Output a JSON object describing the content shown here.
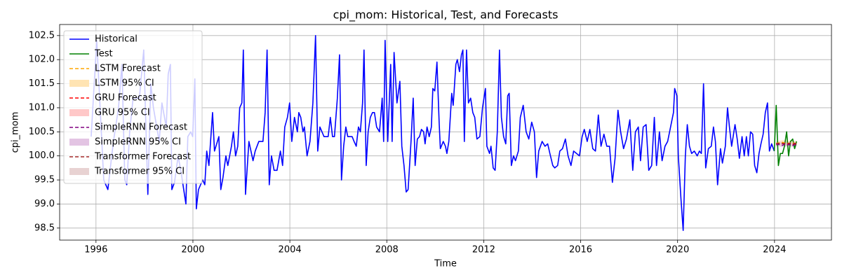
{
  "chart_data": {
    "type": "line",
    "title": "cpi_mom: Historical, Test, and Forecasts",
    "x_label": "Time",
    "y_label": "cpi_mom",
    "xlim": [
      1994.5,
      2026.35
    ],
    "ylim": [
      98.25,
      102.73
    ],
    "xticks": [
      1996,
      2000,
      2004,
      2008,
      2012,
      2016,
      2020,
      2024
    ],
    "yticks": [
      98.5,
      {
        "value": 99,
        "label": "99.0"
      },
      99.5,
      {
        "value": 100,
        "label": "100.0"
      },
      100.5,
      {
        "value": 101,
        "label": "101.0"
      },
      101.5,
      {
        "value": 102,
        "label": "102.0"
      },
      102.5
    ],
    "grid": true,
    "legend": "upper left",
    "series": [
      {
        "name": "Historical",
        "color": "#0000ff",
        "x": [
          1995.8,
          1996.03,
          1996.32,
          1996.49,
          1996.58,
          1996.72,
          1996.93,
          1997.07,
          1997.19,
          1997.27,
          1997.39,
          1997.53,
          1997.79,
          1997.97,
          1998.14,
          1998.26,
          1998.37,
          1998.61,
          1998.72,
          1998.9,
          1998.98,
          1999.07,
          1999.13,
          1999.24,
          1999.39,
          1999.53,
          1999.71,
          1999.79,
          1999.91,
          1999.99,
          2000.08,
          2000.14,
          2000.23,
          2000.4,
          2000.49,
          2000.57,
          2000.66,
          2000.81,
          2000.89,
          2001.07,
          2001.15,
          2001.24,
          2001.36,
          2001.44,
          2001.59,
          2001.67,
          2001.76,
          2001.85,
          2001.93,
          2002.02,
          2002.08,
          2002.17,
          2002.31,
          2002.48,
          2002.57,
          2002.72,
          2002.89,
          2002.98,
          2003.06,
          2003.15,
          2003.24,
          2003.35,
          2003.47,
          2003.61,
          2003.7,
          2003.79,
          2003.9,
          2003.99,
          2004.08,
          2004.19,
          2004.31,
          2004.37,
          2004.45,
          2004.54,
          2004.6,
          2004.71,
          2004.83,
          2004.95,
          2005.06,
          2005.15,
          2005.24,
          2005.41,
          2005.58,
          2005.67,
          2005.76,
          2005.84,
          2005.96,
          2006.05,
          2006.13,
          2006.22,
          2006.31,
          2006.39,
          2006.57,
          2006.65,
          2006.74,
          2006.83,
          2006.91,
          2007.0,
          2007.06,
          2007.15,
          2007.23,
          2007.32,
          2007.41,
          2007.49,
          2007.58,
          2007.7,
          2007.81,
          2007.87,
          2007.93,
          2008.04,
          2008.16,
          2008.22,
          2008.3,
          2008.42,
          2008.54,
          2008.62,
          2008.71,
          2008.8,
          2008.88,
          2009.0,
          2009.09,
          2009.17,
          2009.26,
          2009.35,
          2009.43,
          2009.52,
          2009.58,
          2009.66,
          2009.75,
          2009.84,
          2009.9,
          2009.98,
          2010.07,
          2010.16,
          2010.21,
          2010.33,
          2010.42,
          2010.48,
          2010.56,
          2010.68,
          2010.74,
          2010.85,
          2010.91,
          2011.0,
          2011.08,
          2011.14,
          2011.2,
          2011.29,
          2011.37,
          2011.46,
          2011.55,
          2011.63,
          2011.72,
          2011.84,
          2011.95,
          2012.07,
          2012.13,
          2012.24,
          2012.3,
          2012.39,
          2012.47,
          2012.56,
          2012.65,
          2012.73,
          2012.82,
          2012.91,
          2012.99,
          2013.05,
          2013.14,
          2013.23,
          2013.31,
          2013.43,
          2013.51,
          2013.63,
          2013.75,
          2013.86,
          2013.98,
          2014.09,
          2014.18,
          2014.27,
          2014.41,
          2014.53,
          2014.64,
          2014.73,
          2014.85,
          2014.93,
          2015.05,
          2015.14,
          2015.25,
          2015.37,
          2015.48,
          2015.6,
          2015.71,
          2015.83,
          2015.95,
          2016.06,
          2016.15,
          2016.27,
          2016.38,
          2016.5,
          2016.61,
          2016.73,
          2016.84,
          2016.96,
          2017.08,
          2017.19,
          2017.31,
          2017.42,
          2017.54,
          2017.65,
          2017.77,
          2017.89,
          2018.03,
          2018.15,
          2018.26,
          2018.38,
          2018.47,
          2018.58,
          2018.7,
          2018.81,
          2018.93,
          2019.04,
          2019.13,
          2019.25,
          2019.36,
          2019.48,
          2019.59,
          2019.71,
          2019.83,
          2019.88,
          2019.97,
          2020.03,
          2020.14,
          2020.23,
          2020.32,
          2020.4,
          2020.49,
          2020.58,
          2020.69,
          2020.81,
          2020.9,
          2020.98,
          2021.07,
          2021.16,
          2021.27,
          2021.39,
          2021.48,
          2021.56,
          2021.65,
          2021.77,
          2021.85,
          2021.97,
          2022.06,
          2022.14,
          2022.23,
          2022.37,
          2022.46,
          2022.55,
          2022.66,
          2022.75,
          2022.84,
          2022.92,
          2023.01,
          2023.1,
          2023.18,
          2023.27,
          2023.36,
          2023.44,
          2023.53,
          2023.62,
          2023.71,
          2023.79,
          2023.88,
          2023.99
        ],
        "values": [
          100.4,
          102.4,
          99.5,
          99.3,
          99.7,
          100.3,
          101.0,
          101.9,
          99.5,
          99.4,
          100.5,
          101.2,
          101.2,
          102.2,
          99.2,
          101.5,
          101.0,
          100.3,
          101.1,
          100.6,
          101.7,
          101.9,
          99.3,
          99.45,
          100.0,
          99.6,
          99.0,
          100.4,
          100.5,
          100.4,
          101.6,
          98.9,
          99.3,
          99.5,
          99.4,
          100.1,
          99.8,
          100.9,
          100.1,
          100.4,
          99.3,
          99.55,
          100.0,
          99.8,
          100.2,
          100.5,
          100.0,
          100.2,
          101.0,
          101.1,
          102.2,
          99.2,
          100.3,
          99.9,
          100.1,
          100.3,
          100.3,
          100.9,
          102.2,
          99.4,
          100.0,
          99.7,
          99.7,
          100.1,
          99.8,
          100.6,
          100.8,
          101.1,
          100.3,
          100.8,
          100.5,
          100.9,
          100.8,
          100.5,
          100.6,
          100.0,
          100.3,
          101.1,
          102.5,
          100.1,
          100.6,
          100.4,
          100.4,
          100.8,
          100.4,
          100.4,
          101.2,
          102.1,
          99.5,
          100.2,
          100.6,
          100.4,
          100.4,
          100.3,
          100.2,
          100.6,
          100.5,
          101.1,
          102.2,
          99.8,
          100.5,
          100.8,
          100.9,
          100.9,
          100.6,
          100.5,
          101.2,
          100.3,
          102.4,
          100.3,
          101.9,
          100.3,
          102.15,
          101.1,
          101.55,
          100.2,
          99.8,
          99.25,
          99.3,
          100.3,
          101.2,
          99.8,
          100.35,
          100.4,
          100.55,
          100.5,
          100.25,
          100.6,
          100.4,
          100.6,
          101.4,
          101.35,
          101.95,
          100.7,
          100.15,
          100.3,
          100.2,
          100.05,
          100.3,
          101.3,
          101.05,
          101.9,
          102.0,
          101.75,
          102.1,
          102.2,
          100.3,
          102.2,
          101.1,
          101.2,
          100.9,
          100.8,
          100.35,
          100.4,
          101.0,
          101.4,
          100.2,
          100.05,
          100.2,
          99.75,
          99.7,
          100.5,
          102.2,
          100.8,
          100.4,
          100.25,
          101.25,
          101.3,
          99.8,
          100.0,
          99.9,
          100.1,
          100.8,
          101.05,
          100.5,
          100.35,
          100.7,
          100.5,
          99.55,
          100.1,
          100.3,
          100.2,
          100.25,
          100.05,
          99.8,
          99.75,
          99.8,
          100.1,
          100.15,
          100.35,
          100.0,
          99.8,
          100.1,
          100.05,
          100.0,
          100.4,
          100.55,
          100.3,
          100.55,
          100.15,
          100.1,
          100.85,
          100.2,
          100.45,
          100.2,
          100.2,
          99.45,
          99.95,
          100.95,
          100.5,
          100.15,
          100.35,
          100.75,
          99.7,
          100.5,
          100.6,
          99.9,
          100.6,
          100.65,
          99.7,
          99.8,
          100.8,
          99.8,
          100.5,
          99.9,
          100.2,
          100.3,
          100.6,
          100.9,
          101.4,
          101.25,
          100.0,
          99.1,
          98.45,
          100.0,
          100.65,
          100.2,
          100.05,
          100.1,
          100.0,
          100.1,
          100.05,
          101.5,
          99.75,
          100.15,
          100.2,
          100.6,
          100.3,
          99.4,
          100.15,
          99.85,
          100.2,
          101.0,
          100.6,
          100.2,
          100.65,
          100.35,
          99.95,
          100.4,
          100.0,
          100.4,
          100.0,
          100.5,
          100.45,
          99.8,
          99.65,
          100.05,
          100.25,
          100.45,
          100.9,
          101.1,
          100.1,
          100.25,
          100.1
        ]
      },
      {
        "name": "Test",
        "color": "#008000",
        "x": [
          2023.99,
          2024.07,
          2024.16,
          2024.24,
          2024.33,
          2024.41,
          2024.5,
          2024.58,
          2024.66,
          2024.75,
          2024.83,
          2024.91
        ],
        "values": [
          100.1,
          101.05,
          99.8,
          100.05,
          100.05,
          100.2,
          100.5,
          100.0,
          100.3,
          100.35,
          100.15,
          100.3
        ]
      },
      {
        "name": "LSTM Forecast",
        "color": "#ffa500",
        "dashed": true,
        "x": [
          2024.07,
          2024.16,
          2024.24,
          2024.33,
          2024.41,
          2024.5,
          2024.58,
          2024.66,
          2024.75,
          2024.83,
          2024.91
        ],
        "values": [
          100.26,
          100.27,
          100.27,
          100.28,
          100.27,
          100.27,
          100.26,
          100.27,
          100.27,
          100.26,
          100.27
        ]
      },
      {
        "name": "GRU Forecast",
        "color": "#ff0000",
        "dashed": true,
        "x": [
          2024.07,
          2024.16,
          2024.24,
          2024.33,
          2024.41,
          2024.5,
          2024.58,
          2024.66,
          2024.75,
          2024.83,
          2024.91
        ],
        "values": [
          100.25,
          100.26,
          100.25,
          100.26,
          100.25,
          100.24,
          100.25,
          100.25,
          100.24,
          100.25,
          100.25
        ]
      },
      {
        "name": "SimpleRNN Forecast",
        "color": "#800080",
        "dashed": true,
        "x": [
          2024.07,
          2024.16,
          2024.24,
          2024.33,
          2024.41,
          2024.5,
          2024.58,
          2024.66,
          2024.75,
          2024.83,
          2024.91
        ],
        "values": [
          100.23,
          100.24,
          100.23,
          100.22,
          100.24,
          100.23,
          100.23,
          100.24,
          100.22,
          100.23,
          100.23
        ]
      },
      {
        "name": "Transformer Forecast",
        "color": "#a52a2a",
        "dashed": true,
        "x": [
          2024.07,
          2024.16,
          2024.24,
          2024.33,
          2024.41,
          2024.5,
          2024.58,
          2024.66,
          2024.75,
          2024.83,
          2024.91
        ],
        "values": [
          100.26,
          100.26,
          100.25,
          100.26,
          100.26,
          100.25,
          100.26,
          100.26,
          100.25,
          100.26,
          100.26
        ]
      }
    ],
    "bands": [
      {
        "name": "LSTM 95% CI",
        "color": "#ffe4b3",
        "x": [
          2024.07,
          2024.16,
          2024.24,
          2024.33,
          2024.41,
          2024.5,
          2024.58,
          2024.66,
          2024.75,
          2024.83,
          2024.91
        ],
        "lower": [
          100.22,
          100.22,
          100.22,
          100.23,
          100.22,
          100.22,
          100.21,
          100.22,
          100.22,
          100.21,
          100.22
        ],
        "upper": [
          100.31,
          100.32,
          100.32,
          100.33,
          100.32,
          100.32,
          100.31,
          100.32,
          100.32,
          100.31,
          100.32
        ]
      },
      {
        "name": "GRU 95% CI",
        "color": "#ffc8c8",
        "x": [
          2024.07,
          2024.16,
          2024.24,
          2024.33,
          2024.41,
          2024.5,
          2024.58,
          2024.66,
          2024.75,
          2024.83,
          2024.91
        ],
        "lower": [
          100.21,
          100.22,
          100.21,
          100.22,
          100.21,
          100.2,
          100.21,
          100.21,
          100.2,
          100.21,
          100.21
        ],
        "upper": [
          100.29,
          100.3,
          100.29,
          100.3,
          100.29,
          100.28,
          100.29,
          100.29,
          100.28,
          100.29,
          100.29
        ]
      },
      {
        "name": "SimpleRNN 95% CI",
        "color": "#e3c4e3",
        "x": [
          2024.07,
          2024.16,
          2024.24,
          2024.33,
          2024.41,
          2024.5,
          2024.58,
          2024.66,
          2024.75,
          2024.83,
          2024.91
        ],
        "lower": [
          100.19,
          100.2,
          100.19,
          100.18,
          100.2,
          100.19,
          100.19,
          100.2,
          100.18,
          100.19,
          100.19
        ],
        "upper": [
          100.27,
          100.28,
          100.27,
          100.26,
          100.28,
          100.27,
          100.27,
          100.28,
          100.26,
          100.27,
          100.27
        ]
      },
      {
        "name": "Transformer 95% CI",
        "color": "#e8d2d2",
        "x": [
          2024.07,
          2024.16,
          2024.24,
          2024.33,
          2024.41,
          2024.5,
          2024.58,
          2024.66,
          2024.75,
          2024.83,
          2024.91
        ],
        "lower": [
          100.22,
          100.22,
          100.21,
          100.22,
          100.22,
          100.21,
          100.22,
          100.22,
          100.21,
          100.22,
          100.22
        ],
        "upper": [
          100.3,
          100.3,
          100.29,
          100.3,
          100.3,
          100.29,
          100.3,
          100.3,
          100.29,
          100.3,
          100.3
        ]
      }
    ]
  }
}
